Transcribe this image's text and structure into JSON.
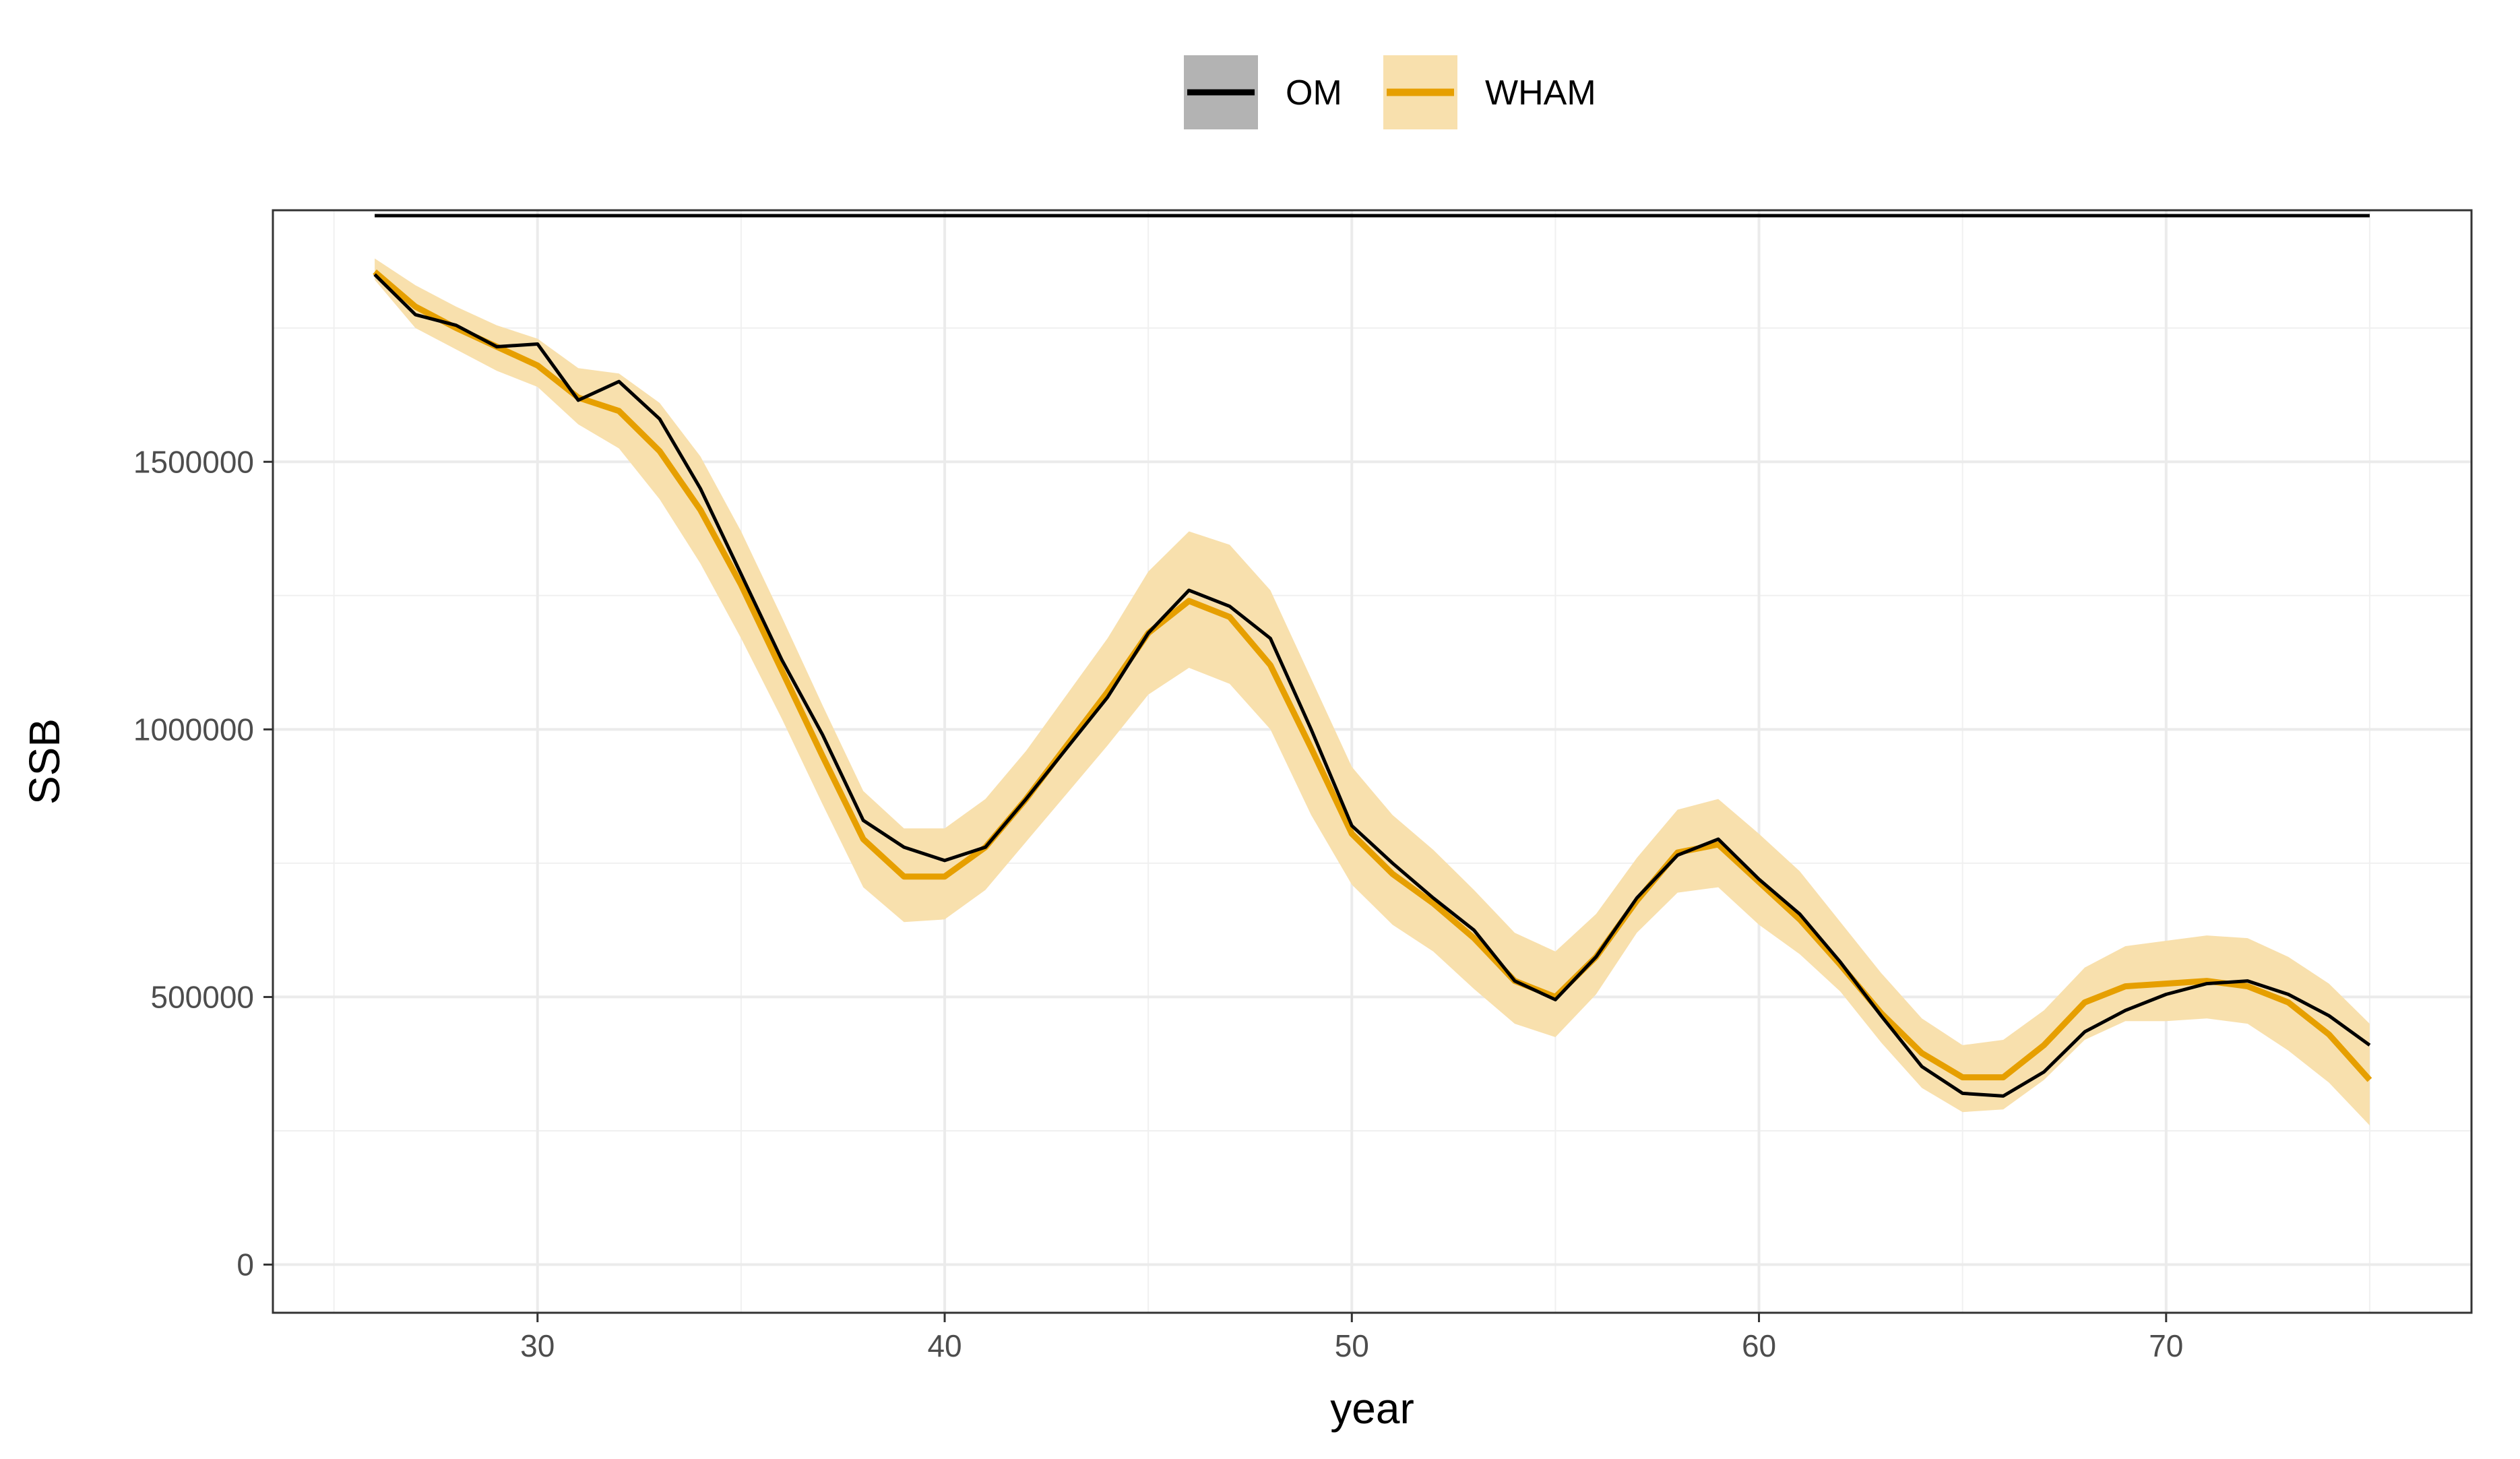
{
  "chart_data": {
    "type": "line",
    "xlabel": "year",
    "ylabel": "SSB",
    "xlim": [
      23.5,
      77.5
    ],
    "ylim": [
      -90000,
      1970000
    ],
    "x_ticks": [
      30,
      40,
      50,
      60,
      70
    ],
    "x_tick_labels": [
      "30",
      "40",
      "50",
      "60",
      "70"
    ],
    "y_ticks": [
      0,
      500000,
      1000000,
      1500000
    ],
    "y_tick_labels": [
      "0",
      "500000",
      "1000000",
      "1500000"
    ],
    "grid": true,
    "legend_position": "top",
    "x": [
      26,
      27,
      28,
      29,
      30,
      31,
      32,
      33,
      34,
      35,
      36,
      37,
      38,
      39,
      40,
      41,
      42,
      43,
      44,
      45,
      46,
      47,
      48,
      49,
      50,
      51,
      52,
      53,
      54,
      55,
      56,
      57,
      58,
      59,
      60,
      61,
      62,
      63,
      64,
      65,
      66,
      67,
      68,
      69,
      70,
      71,
      72,
      73,
      74,
      75
    ],
    "series": [
      {
        "name": "OM",
        "color": "#000000",
        "values": [
          1850000,
          1775000,
          1755000,
          1715000,
          1720000,
          1615000,
          1650000,
          1580000,
          1450000,
          1290000,
          1130000,
          990000,
          830000,
          780000,
          755000,
          780000,
          870000,
          965000,
          1060000,
          1180000,
          1260000,
          1230000,
          1170000,
          1000000,
          820000,
          750000,
          685000,
          625000,
          530000,
          495000,
          575000,
          685000,
          765000,
          795000,
          720000,
          655000,
          565000,
          465000,
          370000,
          320000,
          315000,
          360000,
          435000,
          475000,
          505000,
          525000,
          530000,
          505000,
          465000,
          410000
        ],
        "top_line_value": 1960000
      },
      {
        "name": "WHAM",
        "color": "#E69F00",
        "ribbon_color": "#F8E0AD",
        "values": [
          1855000,
          1790000,
          1750000,
          1715000,
          1680000,
          1620000,
          1595000,
          1520000,
          1410000,
          1270000,
          1110000,
          950000,
          795000,
          725000,
          725000,
          780000,
          870000,
          970000,
          1070000,
          1180000,
          1240000,
          1210000,
          1120000,
          965000,
          805000,
          730000,
          675000,
          610000,
          530000,
          500000,
          575000,
          680000,
          770000,
          785000,
          715000,
          645000,
          560000,
          470000,
          395000,
          350000,
          350000,
          410000,
          490000,
          520000,
          525000,
          530000,
          520000,
          490000,
          430000,
          345000
        ],
        "lower": [
          1840000,
          1750000,
          1710000,
          1670000,
          1640000,
          1570000,
          1525000,
          1430000,
          1310000,
          1170000,
          1020000,
          860000,
          705000,
          640000,
          645000,
          700000,
          790000,
          880000,
          970000,
          1065000,
          1115000,
          1085000,
          1000000,
          840000,
          710000,
          635000,
          585000,
          515000,
          450000,
          425000,
          505000,
          620000,
          695000,
          705000,
          635000,
          580000,
          510000,
          415000,
          330000,
          285000,
          290000,
          345000,
          420000,
          455000,
          455000,
          460000,
          450000,
          400000,
          340000,
          260000
        ],
        "upper": [
          1880000,
          1830000,
          1790000,
          1755000,
          1730000,
          1675000,
          1665000,
          1610000,
          1510000,
          1370000,
          1210000,
          1045000,
          885000,
          815000,
          815000,
          870000,
          960000,
          1065000,
          1170000,
          1295000,
          1370000,
          1345000,
          1260000,
          1095000,
          930000,
          840000,
          775000,
          700000,
          620000,
          585000,
          655000,
          760000,
          850000,
          870000,
          805000,
          735000,
          640000,
          545000,
          460000,
          410000,
          420000,
          475000,
          555000,
          595000,
          605000,
          615000,
          610000,
          575000,
          525000,
          450000
        ]
      }
    ]
  }
}
